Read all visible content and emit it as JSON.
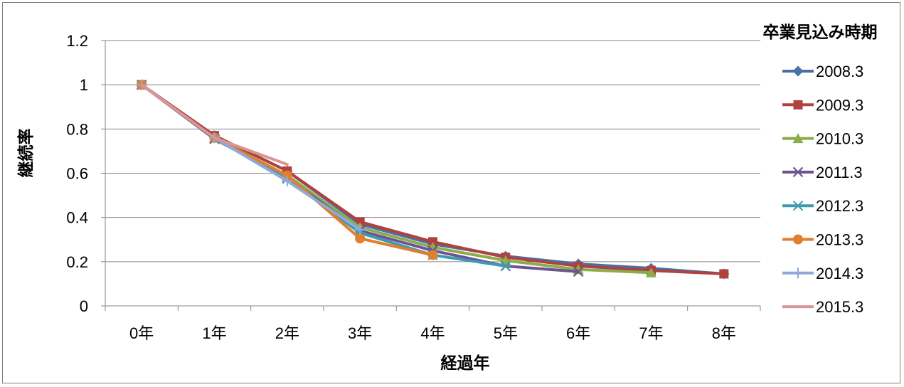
{
  "chart_data": {
    "type": "line",
    "title": "",
    "xlabel": "経過年",
    "ylabel": "継続率",
    "ylim": [
      0,
      1.2
    ],
    "yticks": [
      "0",
      "0.2",
      "0.4",
      "0.6",
      "0.8",
      "1",
      "1.2"
    ],
    "categories": [
      "0年",
      "1年",
      "2年",
      "3年",
      "4年",
      "5年",
      "6年",
      "7年",
      "8年"
    ],
    "grid": true,
    "legend_title": "卒業見込み時期",
    "legend_position": "right",
    "series": [
      {
        "name": "2008.3",
        "color": "#4a6fa5",
        "marker": "diamond",
        "values": [
          1.0,
          0.77,
          0.61,
          0.37,
          0.28,
          0.225,
          0.19,
          0.17,
          0.145
        ]
      },
      {
        "name": "2009.3",
        "color": "#b0413e",
        "marker": "square",
        "values": [
          1.0,
          0.77,
          0.61,
          0.38,
          0.29,
          0.22,
          0.18,
          0.16,
          0.145
        ]
      },
      {
        "name": "2010.3",
        "color": "#8aad4a",
        "marker": "triangle",
        "values": [
          1.0,
          0.76,
          0.59,
          0.355,
          0.265,
          0.205,
          0.165,
          0.15,
          null
        ]
      },
      {
        "name": "2011.3",
        "color": "#6e5393",
        "marker": "x",
        "values": [
          1.0,
          0.755,
          0.58,
          0.34,
          0.25,
          0.18,
          0.155,
          null,
          null
        ]
      },
      {
        "name": "2012.3",
        "color": "#3d9ab0",
        "marker": "asterisk",
        "values": [
          1.0,
          0.76,
          0.575,
          0.33,
          0.23,
          0.18,
          null,
          null,
          null
        ]
      },
      {
        "name": "2013.3",
        "color": "#e07f2d",
        "marker": "circle",
        "values": [
          1.0,
          0.76,
          0.59,
          0.305,
          0.23,
          null,
          null,
          null,
          null
        ]
      },
      {
        "name": "2014.3",
        "color": "#8faad6",
        "marker": "plus",
        "values": [
          1.0,
          0.76,
          0.565,
          0.345,
          null,
          null,
          null,
          null,
          null
        ]
      },
      {
        "name": "2015.3",
        "color": "#d99594",
        "marker": "none",
        "values": [
          1.0,
          0.76,
          0.64,
          null,
          null,
          null,
          null,
          null,
          null
        ]
      }
    ]
  }
}
